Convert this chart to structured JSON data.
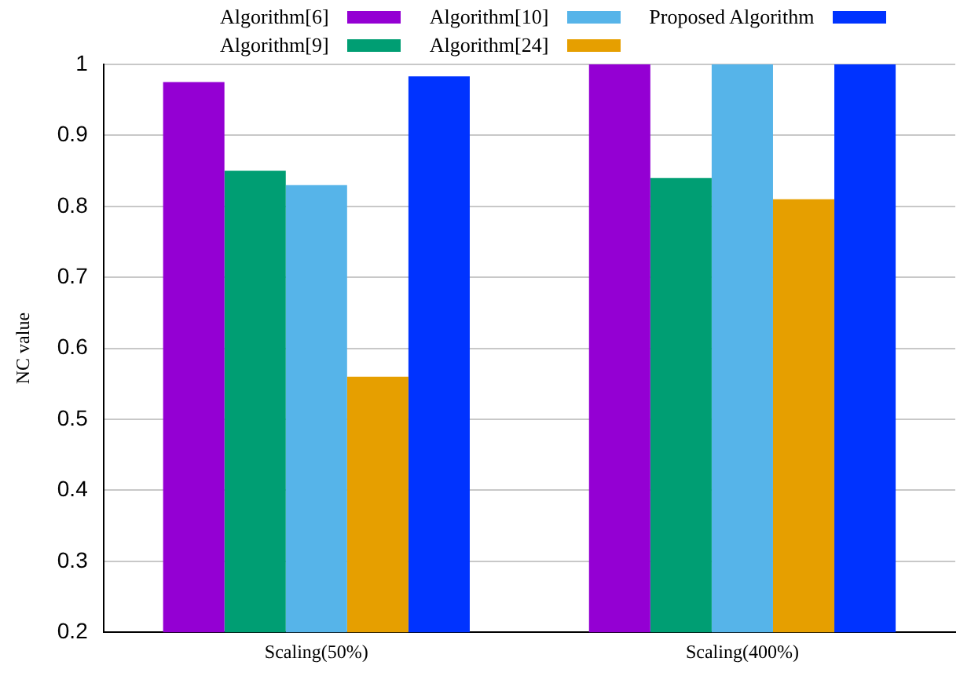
{
  "chart_data": {
    "type": "bar",
    "ylabel": "NC value",
    "categories": [
      "Scaling(50%)",
      "Scaling(400%)"
    ],
    "series": [
      {
        "name": "Algorithm[6]",
        "color": "#9400d3",
        "values": [
          0.975,
          1
        ]
      },
      {
        "name": "Algorithm[9]",
        "color": "#009e73",
        "values": [
          0.85,
          0.84
        ]
      },
      {
        "name": "Algorithm[10]",
        "color": "#56b4e9",
        "values": [
          0.83,
          1
        ]
      },
      {
        "name": "Algorithm[24]",
        "color": "#e69f00",
        "values": [
          0.56,
          0.81
        ]
      },
      {
        "name": "Proposed Algorithm",
        "color": "#0033ff",
        "values": [
          0.983,
          1
        ]
      }
    ],
    "ylim": [
      0.2,
      1
    ],
    "yticks": [
      0.2,
      0.3,
      0.4,
      0.5,
      0.6,
      0.7,
      0.8,
      0.9,
      1
    ],
    "grid": "y",
    "legend": "top"
  }
}
